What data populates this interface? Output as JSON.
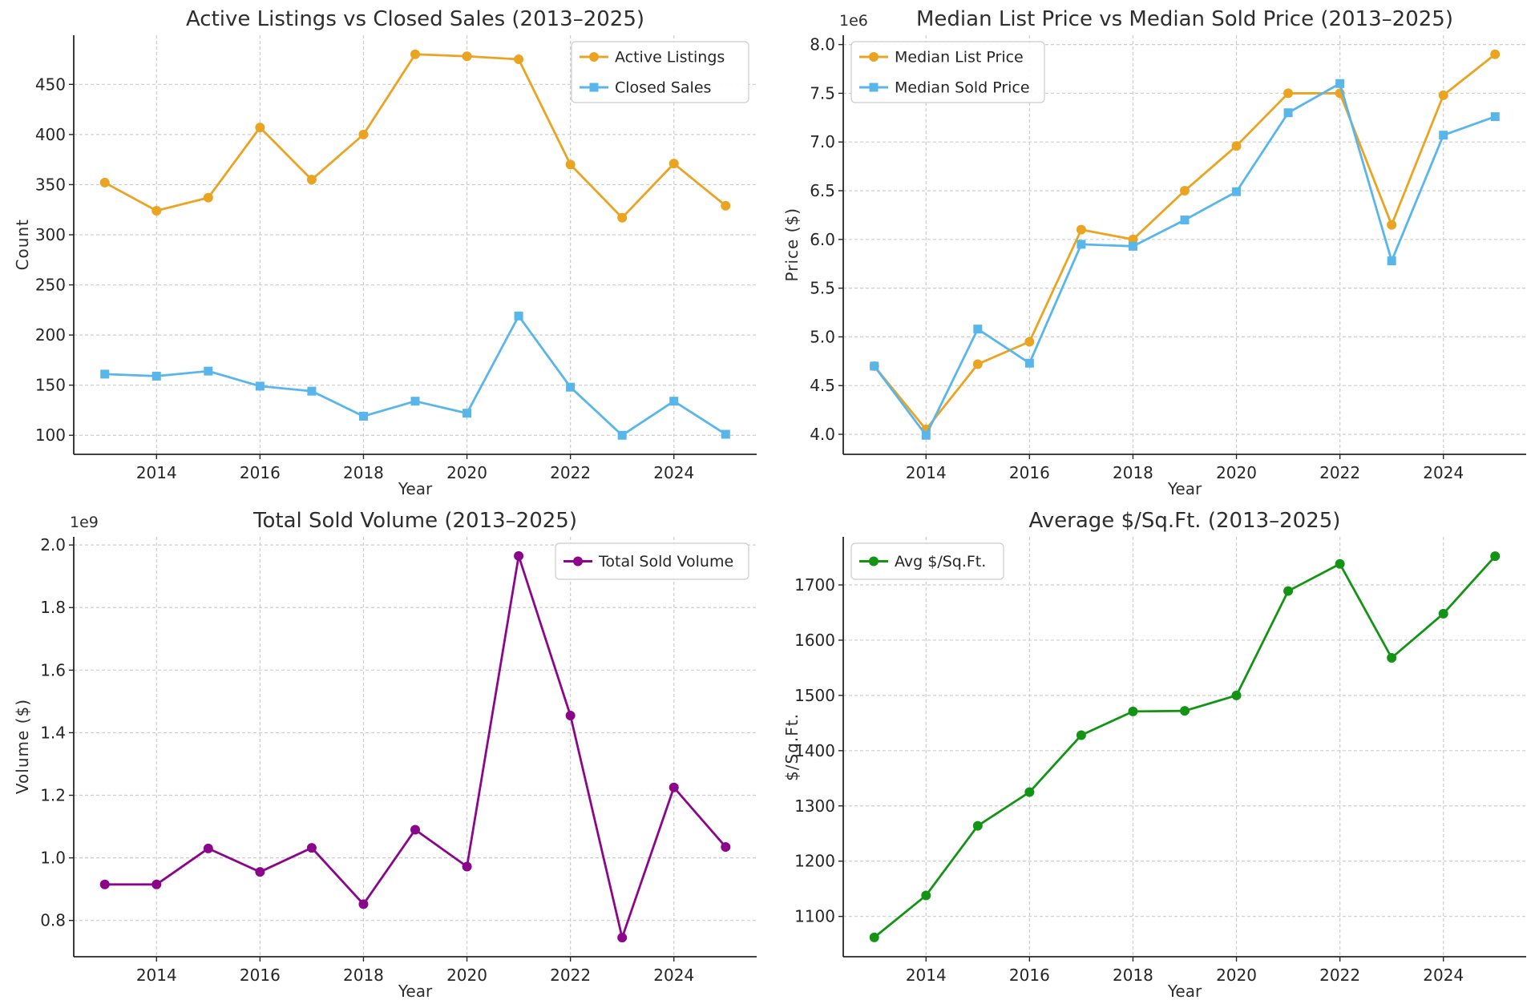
{
  "figure": {
    "background": "#ffffff",
    "grid_color": "#cdcdcd",
    "spine_color": "#262626",
    "text_color": "#2e2e2e",
    "tick_label_color": "#262626",
    "legend_border_color": "#cccccc"
  },
  "chart_data": [
    {
      "id": "active-listings-vs-closed-sales",
      "type": "line",
      "title": "Active Listings vs Closed Sales (2013–2025)",
      "xlabel": "Year",
      "ylabel": "Count",
      "offset_text": "",
      "grid": true,
      "legend_pos": "upper-right",
      "x": [
        2013,
        2014,
        2015,
        2016,
        2017,
        2018,
        2019,
        2020,
        2021,
        2022,
        2023,
        2024,
        2025
      ],
      "series": [
        {
          "name": "Active Listings",
          "color": "#EBA421",
          "marker": "circle",
          "values": [
            352,
            324,
            337,
            407,
            355,
            400,
            480,
            478,
            475,
            370,
            317,
            371,
            329
          ]
        },
        {
          "name": "Closed Sales",
          "color": "#58B6EA",
          "marker": "square",
          "values": [
            161,
            159,
            164,
            149,
            144,
            119,
            134,
            122,
            219,
            148,
            100,
            134,
            101
          ]
        }
      ],
      "xlim": [
        2012.4,
        2025.6
      ],
      "ylim": [
        81,
        499
      ],
      "xticks": [
        2014,
        2016,
        2018,
        2020,
        2022,
        2024
      ],
      "xtick_labels": [
        "2014",
        "2016",
        "2018",
        "2020",
        "2022",
        "2024"
      ],
      "yticks": [
        100,
        150,
        200,
        250,
        300,
        350,
        400,
        450
      ],
      "ytick_labels": [
        "100",
        "150",
        "200",
        "250",
        "300",
        "350",
        "400",
        "450"
      ]
    },
    {
      "id": "median-list-vs-median-sold-price",
      "type": "line",
      "title": "Median List Price vs Median Sold Price (2013–2025)",
      "xlabel": "Year",
      "ylabel": "Price ($)",
      "offset_text": "1e6",
      "grid": true,
      "legend_pos": "upper-left",
      "x": [
        2013,
        2014,
        2015,
        2016,
        2017,
        2018,
        2019,
        2020,
        2021,
        2022,
        2023,
        2024,
        2025
      ],
      "series": [
        {
          "name": "Median List Price",
          "color": "#EBA421",
          "marker": "circle",
          "values": [
            4700000,
            4050000,
            4720000,
            4950000,
            6100000,
            6000000,
            6500000,
            6960000,
            7500000,
            7500000,
            6150000,
            7480000,
            7900000
          ]
        },
        {
          "name": "Median Sold Price",
          "color": "#58B6EA",
          "marker": "square",
          "values": [
            4700000,
            3990000,
            5080000,
            4730000,
            5950000,
            5930000,
            6200000,
            6490000,
            7300000,
            7600000,
            5780000,
            7070000,
            7260000
          ]
        }
      ],
      "xlim": [
        2012.4,
        2025.6
      ],
      "ylim": [
        3794500,
        8095500
      ],
      "xticks": [
        2014,
        2016,
        2018,
        2020,
        2022,
        2024
      ],
      "xtick_labels": [
        "2014",
        "2016",
        "2018",
        "2020",
        "2022",
        "2024"
      ],
      "yticks": [
        4000000,
        4500000,
        5000000,
        5500000,
        6000000,
        6500000,
        7000000,
        7500000,
        8000000
      ],
      "ytick_labels": [
        "4.0",
        "4.5",
        "5.0",
        "5.5",
        "6.0",
        "6.5",
        "7.0",
        "7.5",
        "8.0"
      ]
    },
    {
      "id": "total-sold-volume",
      "type": "line",
      "title": "Total Sold Volume (2013–2025)",
      "xlabel": "Year",
      "ylabel": "Volume ($)",
      "offset_text": "1e9",
      "grid": true,
      "legend_pos": "upper-right",
      "x": [
        2013,
        2014,
        2015,
        2016,
        2017,
        2018,
        2019,
        2020,
        2021,
        2022,
        2023,
        2024,
        2025
      ],
      "series": [
        {
          "name": "Total Sold Volume",
          "color": "#8B068B",
          "marker": "circle",
          "values": [
            915000000,
            915000000,
            1030000000,
            955000000,
            1032000000,
            852000000,
            1090000000,
            972000000,
            1965000000,
            1455000000,
            745000000,
            1225000000,
            1035000000
          ]
        }
      ],
      "xlim": [
        2012.4,
        2025.6
      ],
      "ylim": [
        684000000,
        2026000000
      ],
      "xticks": [
        2014,
        2016,
        2018,
        2020,
        2022,
        2024
      ],
      "xtick_labels": [
        "2014",
        "2016",
        "2018",
        "2020",
        "2022",
        "2024"
      ],
      "yticks": [
        800000000,
        1000000000,
        1200000000,
        1400000000,
        1600000000,
        1800000000,
        2000000000
      ],
      "ytick_labels": [
        "0.8",
        "1.0",
        "1.2",
        "1.4",
        "1.6",
        "1.8",
        "2.0"
      ]
    },
    {
      "id": "average-price-per-sqft",
      "type": "line",
      "title": "Average $/Sq.Ft. (2013–2025)",
      "xlabel": "Year",
      "ylabel": "$/Sq.Ft.",
      "offset_text": "",
      "grid": true,
      "legend_pos": "upper-left",
      "x": [
        2013,
        2014,
        2015,
        2016,
        2017,
        2018,
        2019,
        2020,
        2021,
        2022,
        2023,
        2024,
        2025
      ],
      "series": [
        {
          "name": "Avg $/Sq.Ft.",
          "color": "#149414",
          "marker": "circle",
          "values": [
            1062,
            1138,
            1264,
            1325,
            1428,
            1471,
            1472,
            1500,
            1689,
            1738,
            1568,
            1648,
            1752
          ]
        }
      ],
      "xlim": [
        2012.4,
        2025.6
      ],
      "ylim": [
        1027,
        1787
      ],
      "xticks": [
        2014,
        2016,
        2018,
        2020,
        2022,
        2024
      ],
      "xtick_labels": [
        "2014",
        "2016",
        "2018",
        "2020",
        "2022",
        "2024"
      ],
      "yticks": [
        1100,
        1200,
        1300,
        1400,
        1500,
        1600,
        1700
      ],
      "ytick_labels": [
        "1100",
        "1200",
        "1300",
        "1400",
        "1500",
        "1600",
        "1700"
      ]
    }
  ]
}
